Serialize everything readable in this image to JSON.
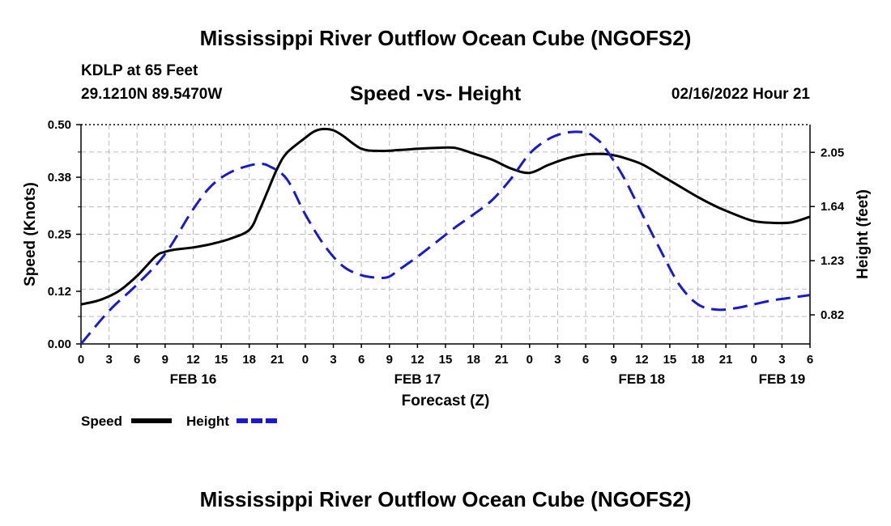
{
  "header": {
    "title": "Mississippi River Outflow Ocean Cube (NGOFS2)",
    "station": "KDLP at 65 Feet",
    "coordinates": "29.1210N  89.5470W",
    "run_time": "02/16/2022 Hour 21"
  },
  "footer": {
    "title": "Mississippi River Outflow Ocean Cube (NGOFS2)"
  },
  "chart_data": {
    "type": "line",
    "title": "Speed -vs- Height",
    "xlabel": "Forecast (Z)",
    "ylabel": "Speed (Knots)",
    "y2label": "Height (feet)",
    "x_hours_from_start": [
      0,
      60
    ],
    "x_tick_labels": [
      "0",
      "3",
      "6",
      "9",
      "12",
      "15",
      "18",
      "21",
      "0",
      "3",
      "6",
      "9",
      "12",
      "15",
      "18",
      "21",
      "0",
      "3",
      "6",
      "9",
      "12",
      "15",
      "18",
      "21",
      "0",
      "3",
      "6"
    ],
    "date_labels": [
      {
        "label": "FEB 16",
        "hour": 12
      },
      {
        "label": "FEB 17",
        "hour": 36
      },
      {
        "label": "FEB 18",
        "hour": 60
      },
      {
        "label": "FEB 19",
        "hour": 75
      }
    ],
    "ylim": [
      0,
      0.5
    ],
    "y_ticks": [
      "0.00",
      "0.12",
      "0.25",
      "0.38",
      "0.50"
    ],
    "y2lim": [
      0.6,
      2.26
    ],
    "y2_ticks": [
      "0.82",
      "1.23",
      "1.64",
      "2.05"
    ],
    "grid": true,
    "legend_position": "bottom-left",
    "series": [
      {
        "name": "Speed",
        "color": "#000000",
        "style": "solid",
        "axis": "left",
        "x": [
          0,
          2,
          4,
          6,
          8,
          9,
          10,
          12,
          14,
          16,
          18,
          19,
          20,
          21,
          22,
          24,
          25,
          26,
          27,
          28,
          30,
          32,
          34,
          36,
          38,
          40,
          42,
          44,
          46,
          48,
          50,
          52,
          54,
          56,
          57,
          58,
          60,
          62,
          64,
          66,
          68,
          70,
          72,
          74,
          76,
          78
        ],
        "values": [
          0.09,
          0.1,
          0.12,
          0.155,
          0.2,
          0.21,
          0.215,
          0.22,
          0.228,
          0.24,
          0.26,
          0.3,
          0.35,
          0.4,
          0.435,
          0.47,
          0.485,
          0.49,
          0.487,
          0.475,
          0.445,
          0.44,
          0.442,
          0.445,
          0.447,
          0.447,
          0.434,
          0.42,
          0.4,
          0.39,
          0.408,
          0.423,
          0.432,
          0.433,
          0.43,
          0.425,
          0.41,
          0.385,
          0.36,
          0.335,
          0.313,
          0.295,
          0.28,
          0.276,
          0.277,
          0.29
        ]
      },
      {
        "name": "Height",
        "color": "#1a1acc",
        "style": "dashed",
        "axis": "right",
        "x": [
          0,
          3,
          6,
          9,
          12,
          14,
          16,
          18,
          19,
          20,
          22,
          24,
          26,
          28,
          30,
          32,
          33,
          34,
          36,
          38,
          40,
          42,
          44,
          46,
          48,
          50,
          52,
          54,
          55,
          56,
          58,
          60,
          62,
          64,
          66,
          68,
          70,
          72,
          74,
          76,
          78
        ],
        "values": [
          0.6,
          0.85,
          1.05,
          1.28,
          1.62,
          1.8,
          1.9,
          1.95,
          1.96,
          1.95,
          1.85,
          1.58,
          1.35,
          1.19,
          1.12,
          1.1,
          1.11,
          1.16,
          1.26,
          1.37,
          1.48,
          1.58,
          1.69,
          1.85,
          2.04,
          2.15,
          2.2,
          2.2,
          2.16,
          2.09,
          1.87,
          1.59,
          1.31,
          1.05,
          0.9,
          0.86,
          0.87,
          0.9,
          0.93,
          0.95,
          0.97
        ]
      }
    ]
  }
}
